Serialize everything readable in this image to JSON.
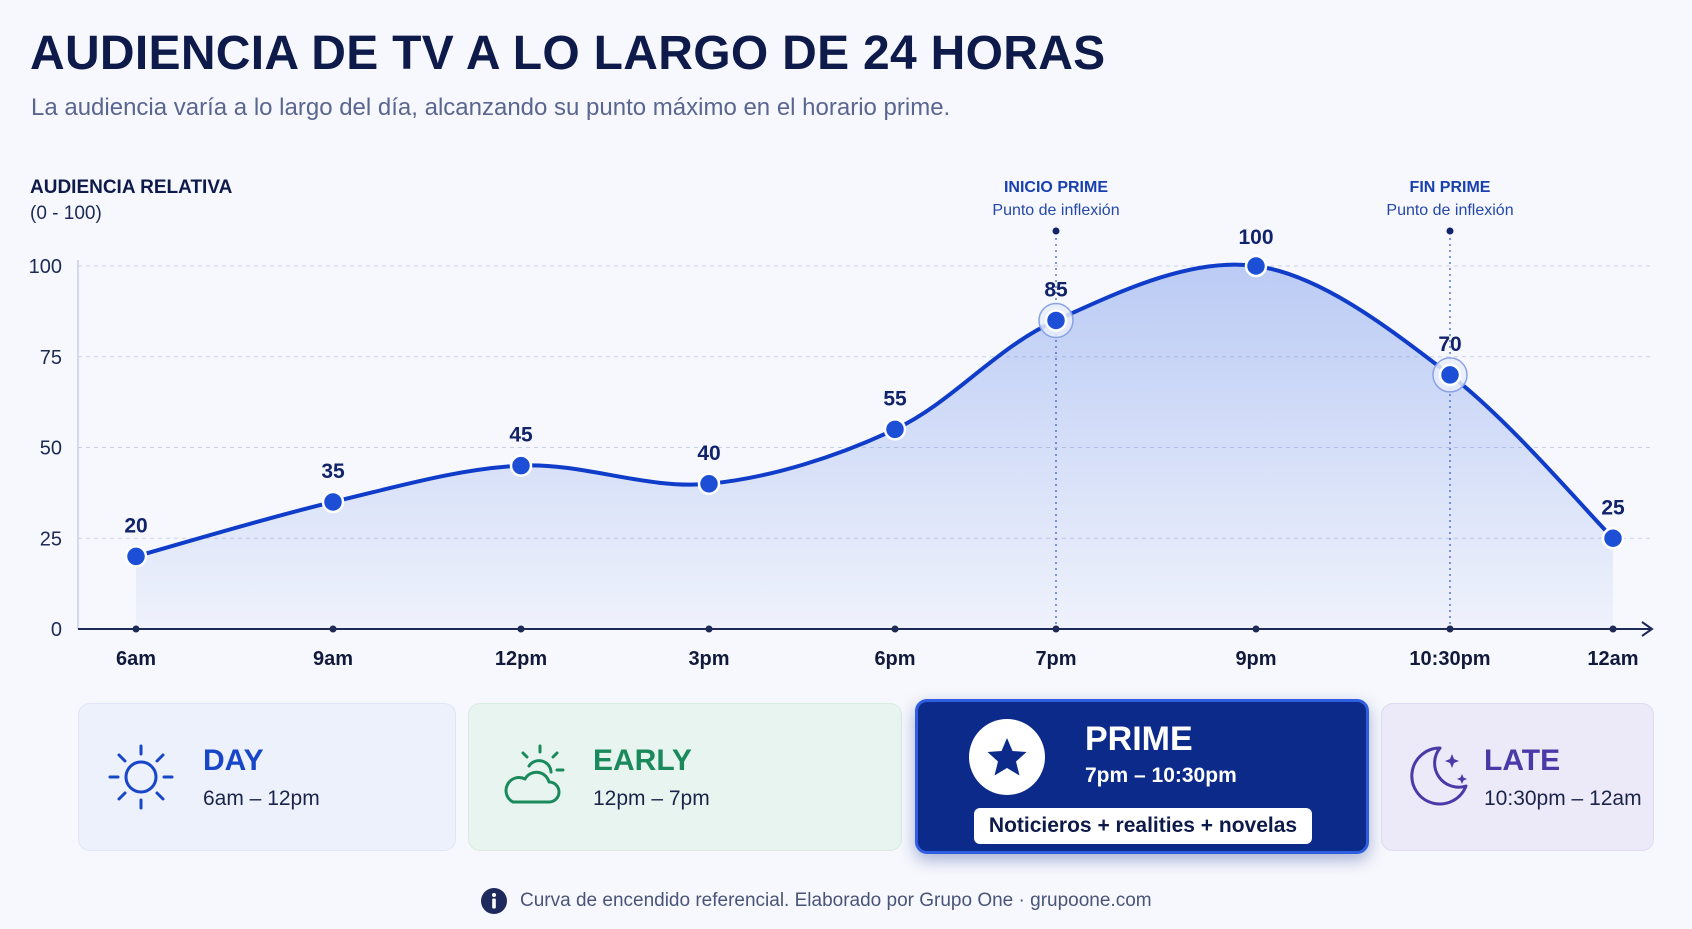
{
  "header": {
    "title": "AUDIENCIA DE TV A LO LARGO DE 24 HORAS",
    "subtitle": "La audiencia varía a lo largo del día, alcanzando su punto máximo en el horario prime."
  },
  "chart_data": {
    "type": "area",
    "ylabel": "AUDIENCIA RELATIVA",
    "ylabel_range": "(0 - 100)",
    "ylim": [
      0,
      100
    ],
    "yticks": [
      0,
      25,
      50,
      75,
      100
    ],
    "categories": [
      "6am",
      "9am",
      "12pm",
      "3pm",
      "6pm",
      "7pm",
      "9pm",
      "10:30pm",
      "12am"
    ],
    "values": [
      20,
      35,
      45,
      40,
      55,
      85,
      100,
      70,
      25
    ],
    "data_labels": [
      "20",
      "35",
      "45",
      "40",
      "55",
      "85",
      "100",
      "70",
      "25"
    ],
    "grid": true,
    "line_color": "#0f3cc9",
    "annotations": [
      {
        "category": "7pm",
        "title": "INICIO PRIME",
        "subtitle": "Punto de inflexión"
      },
      {
        "category": "10:30pm",
        "title": "FIN PRIME",
        "subtitle": "Punto de inflexión"
      }
    ]
  },
  "segments": {
    "day": {
      "name": "DAY",
      "range": "6am – 12pm",
      "icon": "sun-icon",
      "color": "#1746c8"
    },
    "early": {
      "name": "EARLY",
      "range": "12pm – 7pm",
      "icon": "sun-cloud-icon",
      "color": "#1a8a5c"
    },
    "prime": {
      "name": "PRIME",
      "range": "7pm – 10:30pm",
      "icon": "star-icon",
      "content": "Noticieros + realities + novelas",
      "color": "#0b2a8a"
    },
    "late": {
      "name": "LATE",
      "range": "10:30pm – 12am",
      "icon": "moon-stars-icon",
      "color": "#4a3aa8"
    }
  },
  "footer": {
    "icon": "info-icon",
    "text": "Curva de encendido referencial. Elaborado por Grupo One · grupoone.com"
  }
}
